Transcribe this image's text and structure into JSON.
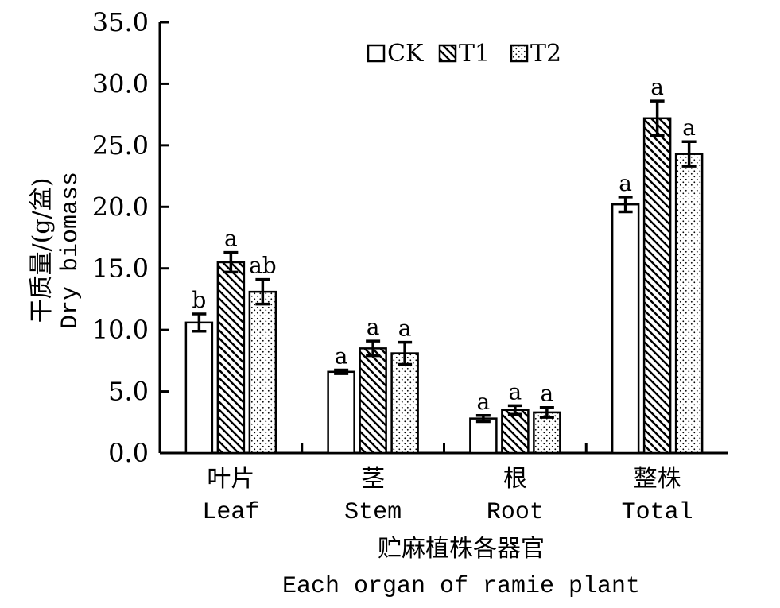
{
  "chart_data": {
    "type": "bar",
    "ylabel_zh": "干质量/(g/盆)",
    "ylabel_en": "Dry biomass",
    "xlabel_zh": "贮麻植株各器官",
    "xlabel_en": "Each organ of ramie plant",
    "ylim": [
      0,
      35
    ],
    "yticks": [
      "0.0",
      "5.0",
      "10.0",
      "15.0",
      "20.0",
      "25.0",
      "30.0",
      "35.0"
    ],
    "categories": [
      {
        "zh": "叶片",
        "en": "Leaf"
      },
      {
        "zh": "茎",
        "en": "Stem"
      },
      {
        "zh": "根",
        "en": "Root"
      },
      {
        "zh": "整株",
        "en": "Total"
      }
    ],
    "series": [
      {
        "name": "CK",
        "pattern": "none",
        "values": [
          10.6,
          6.6,
          2.8,
          20.2
        ],
        "errors": [
          0.7,
          0.15,
          0.25,
          0.6
        ],
        "letters": [
          "b",
          "a",
          "a",
          "a"
        ]
      },
      {
        "name": "T1",
        "pattern": "hatch",
        "values": [
          15.5,
          8.5,
          3.5,
          27.2
        ],
        "errors": [
          0.8,
          0.6,
          0.35,
          1.4
        ],
        "letters": [
          "a",
          "a",
          "a",
          "a"
        ]
      },
      {
        "name": "T2",
        "pattern": "dots",
        "values": [
          13.1,
          8.1,
          3.3,
          24.3
        ],
        "errors": [
          1.0,
          0.9,
          0.4,
          1.0
        ],
        "letters": [
          "ab",
          "a",
          "a",
          "a"
        ]
      }
    ],
    "legend_position": "top-center",
    "grid": false
  }
}
